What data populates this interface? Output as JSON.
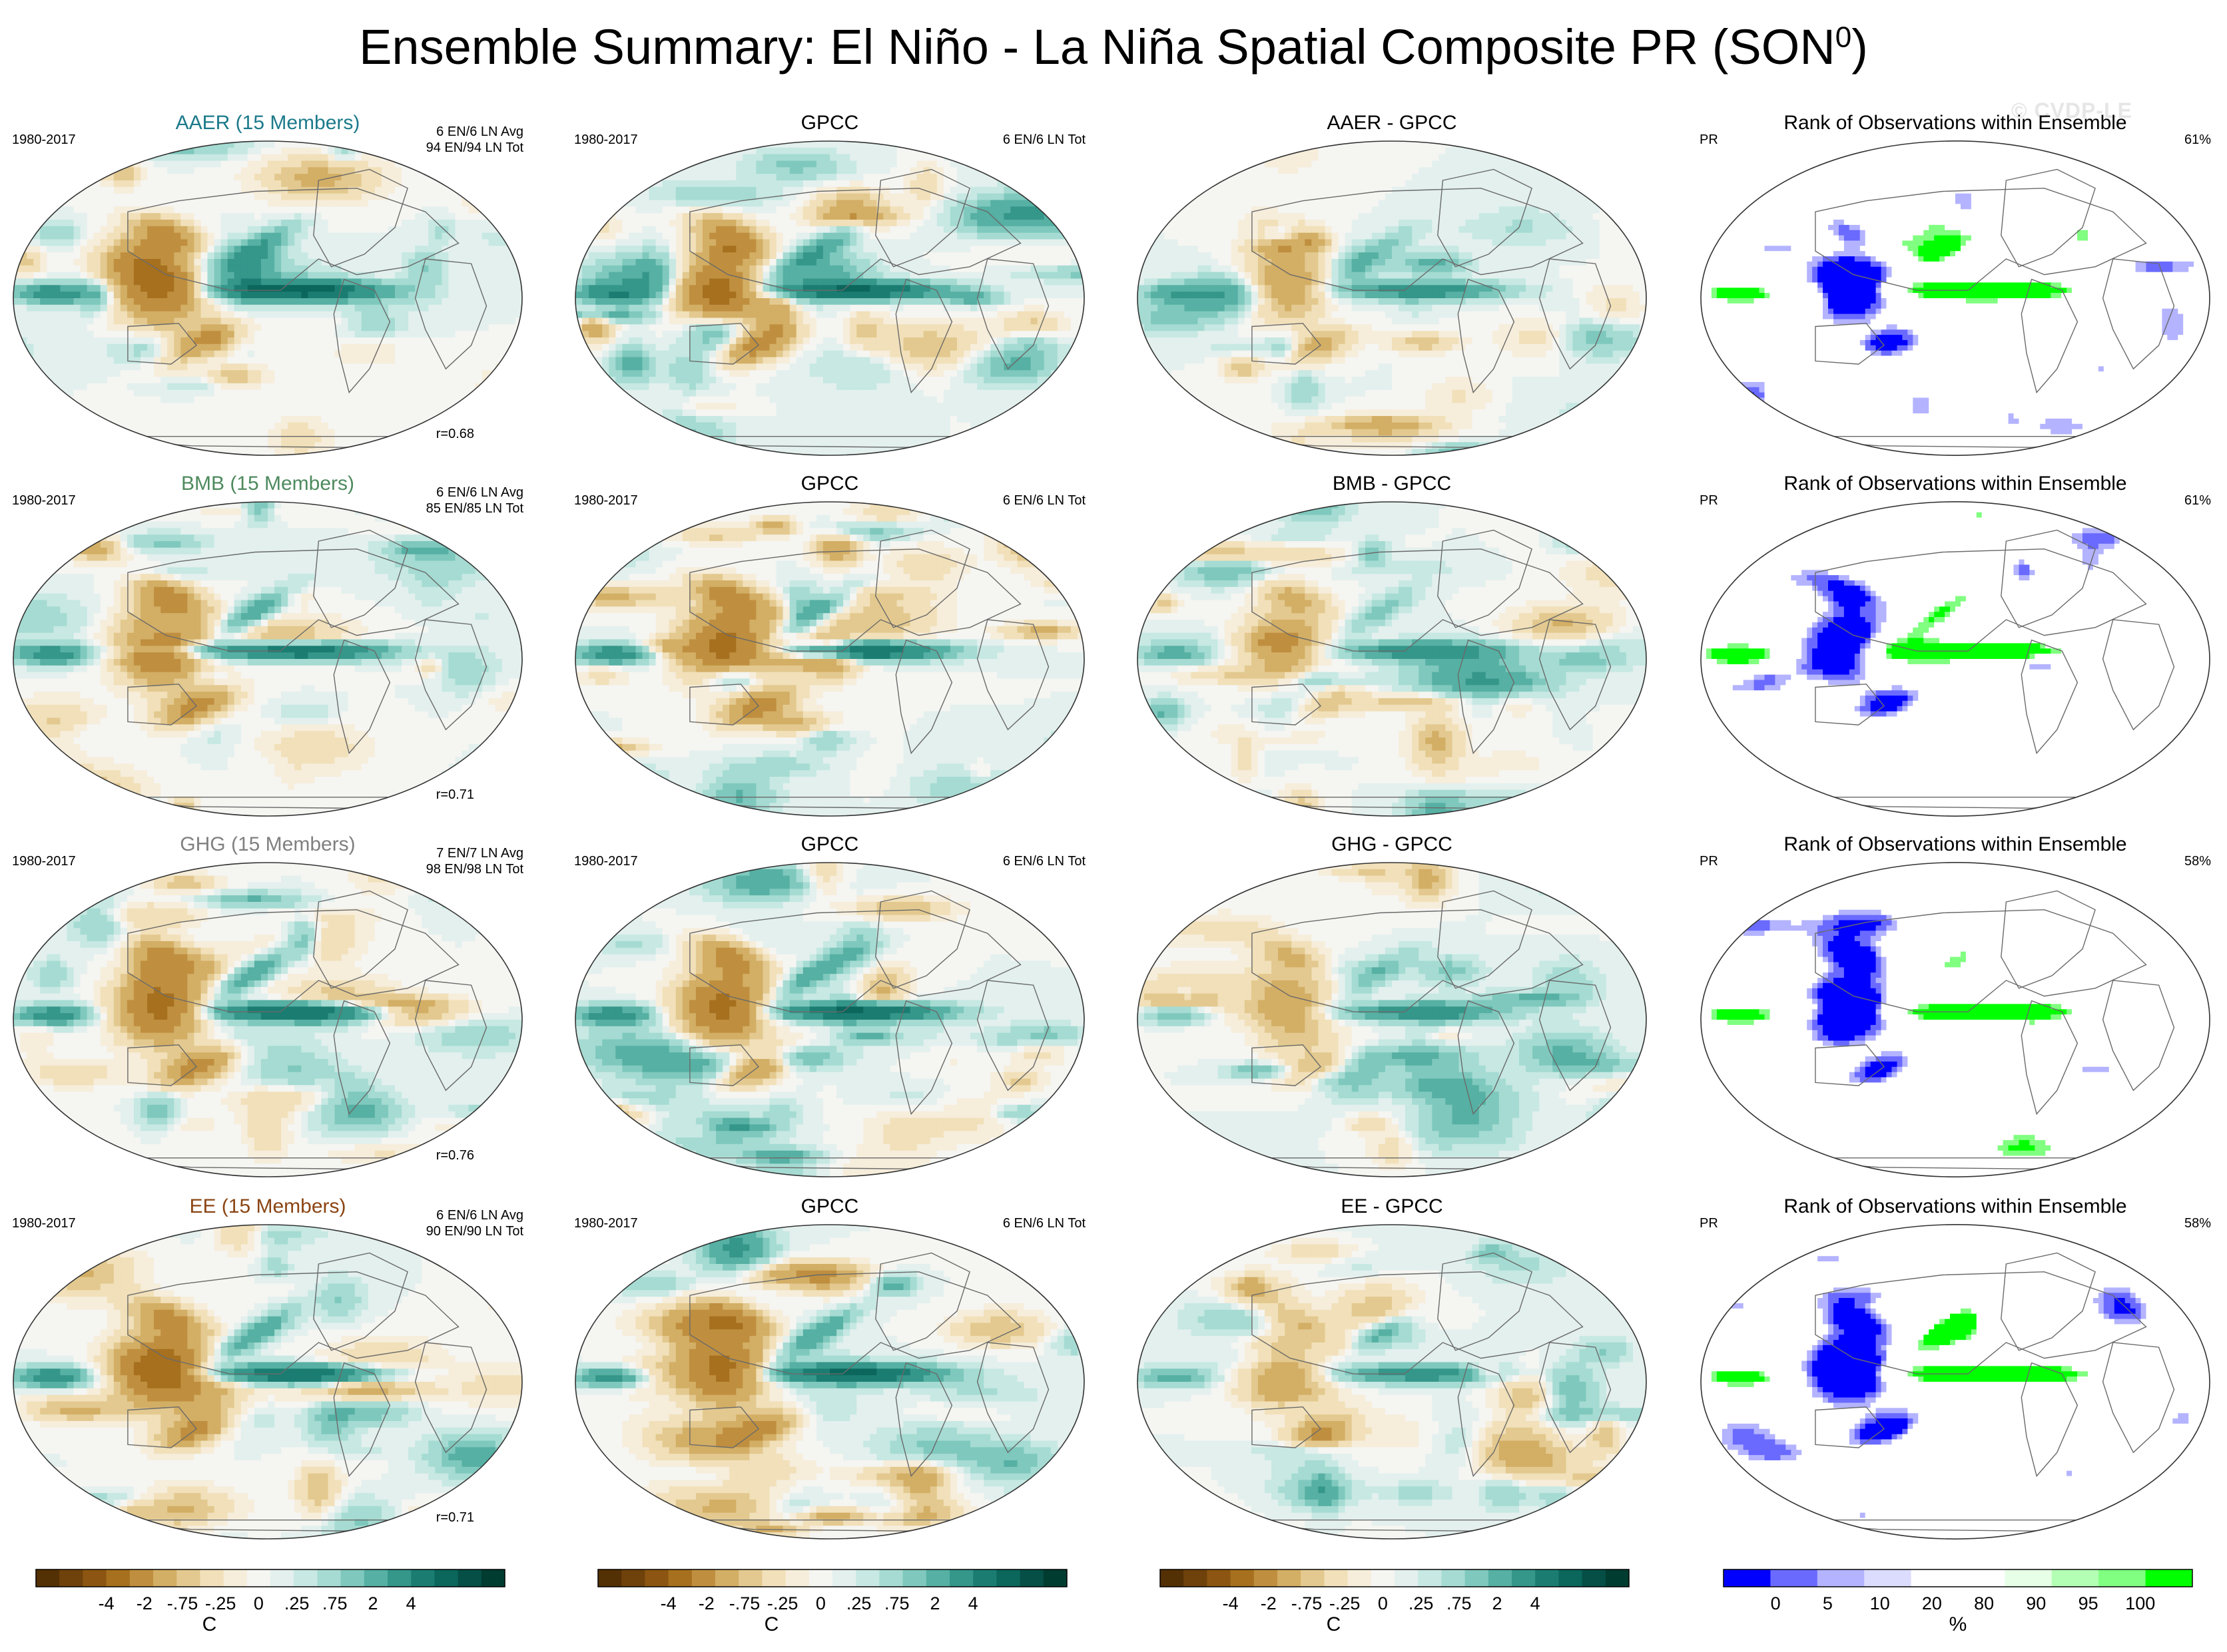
{
  "title": "Ensemble Summary: El Niño - La Niña Spatial Composite PR (SON",
  "title_sup": "0",
  "title_close": ")",
  "watermark": "© CVDP-LE",
  "colors": {
    "diverging": [
      "#543005",
      "#6f410b",
      "#8c5612",
      "#a6701f",
      "#bf8f3f",
      "#d3ae65",
      "#e3c98f",
      "#f1e0b9",
      "#f6eddb",
      "#f5f5f2",
      "#e3f0ee",
      "#c7e8e3",
      "#a5dbd2",
      "#7fc8bd",
      "#56b0a3",
      "#35968a",
      "#1b7d72",
      "#0b665c",
      "#054f46",
      "#003c30"
    ],
    "rank": [
      "#0000ff",
      "#6a6aff",
      "#b3b3ff",
      "#dcdcff",
      "#ffffff",
      "#ffffff",
      "#e6ffe6",
      "#b3ffb3",
      "#80ff80",
      "#00ff00"
    ],
    "model": {
      "AAER": "#1b7a8a",
      "BMB": "#4e8a5e",
      "GHG": "#808080",
      "EE": "#8b4513"
    }
  },
  "chart_data": [
    {
      "row": "AAER",
      "col": "model",
      "type": "heatmap",
      "title": "AAER (15 Members)",
      "color_key": "AAER",
      "left": "1980-2017",
      "right": [
        "6 EN/6 LN Avg",
        "94 EN/94 LN Tot"
      ],
      "r": "r=0.68"
    },
    {
      "row": "AAER",
      "col": "obs",
      "type": "heatmap",
      "title": "GPCC",
      "left": "1980-2017",
      "right": [
        "6 EN/6 LN Tot"
      ]
    },
    {
      "row": "AAER",
      "col": "diff",
      "type": "heatmap",
      "title": "AAER - GPCC"
    },
    {
      "row": "AAER",
      "col": "rank",
      "type": "heatmap",
      "title": "Rank of Observations within Ensemble",
      "left": "PR",
      "pct": "61%"
    },
    {
      "row": "BMB",
      "col": "model",
      "type": "heatmap",
      "title": "BMB (15 Members)",
      "color_key": "BMB",
      "left": "1980-2017",
      "right": [
        "6 EN/6 LN Avg",
        "85 EN/85 LN Tot"
      ],
      "r": "r=0.71"
    },
    {
      "row": "BMB",
      "col": "obs",
      "type": "heatmap",
      "title": "GPCC",
      "left": "1980-2017",
      "right": [
        "6 EN/6 LN Tot"
      ]
    },
    {
      "row": "BMB",
      "col": "diff",
      "type": "heatmap",
      "title": "BMB - GPCC"
    },
    {
      "row": "BMB",
      "col": "rank",
      "type": "heatmap",
      "title": "Rank of Observations within Ensemble",
      "left": "PR",
      "pct": "61%"
    },
    {
      "row": "GHG",
      "col": "model",
      "type": "heatmap",
      "title": "GHG (15 Members)",
      "color_key": "GHG",
      "left": "1980-2017",
      "right": [
        "7 EN/7 LN Avg",
        "98 EN/98 LN Tot"
      ],
      "r": "r=0.76"
    },
    {
      "row": "GHG",
      "col": "obs",
      "type": "heatmap",
      "title": "GPCC",
      "left": "1980-2017",
      "right": [
        "6 EN/6 LN Tot"
      ]
    },
    {
      "row": "GHG",
      "col": "diff",
      "type": "heatmap",
      "title": "GHG - GPCC"
    },
    {
      "row": "GHG",
      "col": "rank",
      "type": "heatmap",
      "title": "Rank of Observations within Ensemble",
      "left": "PR",
      "pct": "58%"
    },
    {
      "row": "EE",
      "col": "model",
      "type": "heatmap",
      "title": "EE (15 Members)",
      "color_key": "EE",
      "left": "1980-2017",
      "right": [
        "6 EN/6 LN Avg",
        "90 EN/90 LN Tot"
      ],
      "r": "r=0.71"
    },
    {
      "row": "EE",
      "col": "obs",
      "type": "heatmap",
      "title": "GPCC",
      "left": "1980-2017",
      "right": [
        "6 EN/6 LN Tot"
      ]
    },
    {
      "row": "EE",
      "col": "diff",
      "type": "heatmap",
      "title": "EE - GPCC"
    },
    {
      "row": "EE",
      "col": "rank",
      "type": "heatmap",
      "title": "Rank of Observations within Ensemble",
      "left": "PR",
      "pct": "58%"
    }
  ],
  "colorbars": [
    {
      "kind": "diverging",
      "ticks": [
        "-4",
        "-2",
        "-.75",
        "-.25",
        "0",
        ".25",
        ".75",
        "2",
        "4"
      ],
      "unit": "C"
    },
    {
      "kind": "diverging",
      "ticks": [
        "-4",
        "-2",
        "-.75",
        "-.25",
        "0",
        ".25",
        ".75",
        "2",
        "4"
      ],
      "unit": "C"
    },
    {
      "kind": "diverging",
      "ticks": [
        "-4",
        "-2",
        "-.75",
        "-.25",
        "0",
        ".25",
        ".75",
        "2",
        "4"
      ],
      "unit": "C"
    },
    {
      "kind": "rank",
      "ticks": [
        "0",
        "5",
        "10",
        "20",
        "80",
        "90",
        "95",
        "100"
      ],
      "unit": "%"
    }
  ]
}
